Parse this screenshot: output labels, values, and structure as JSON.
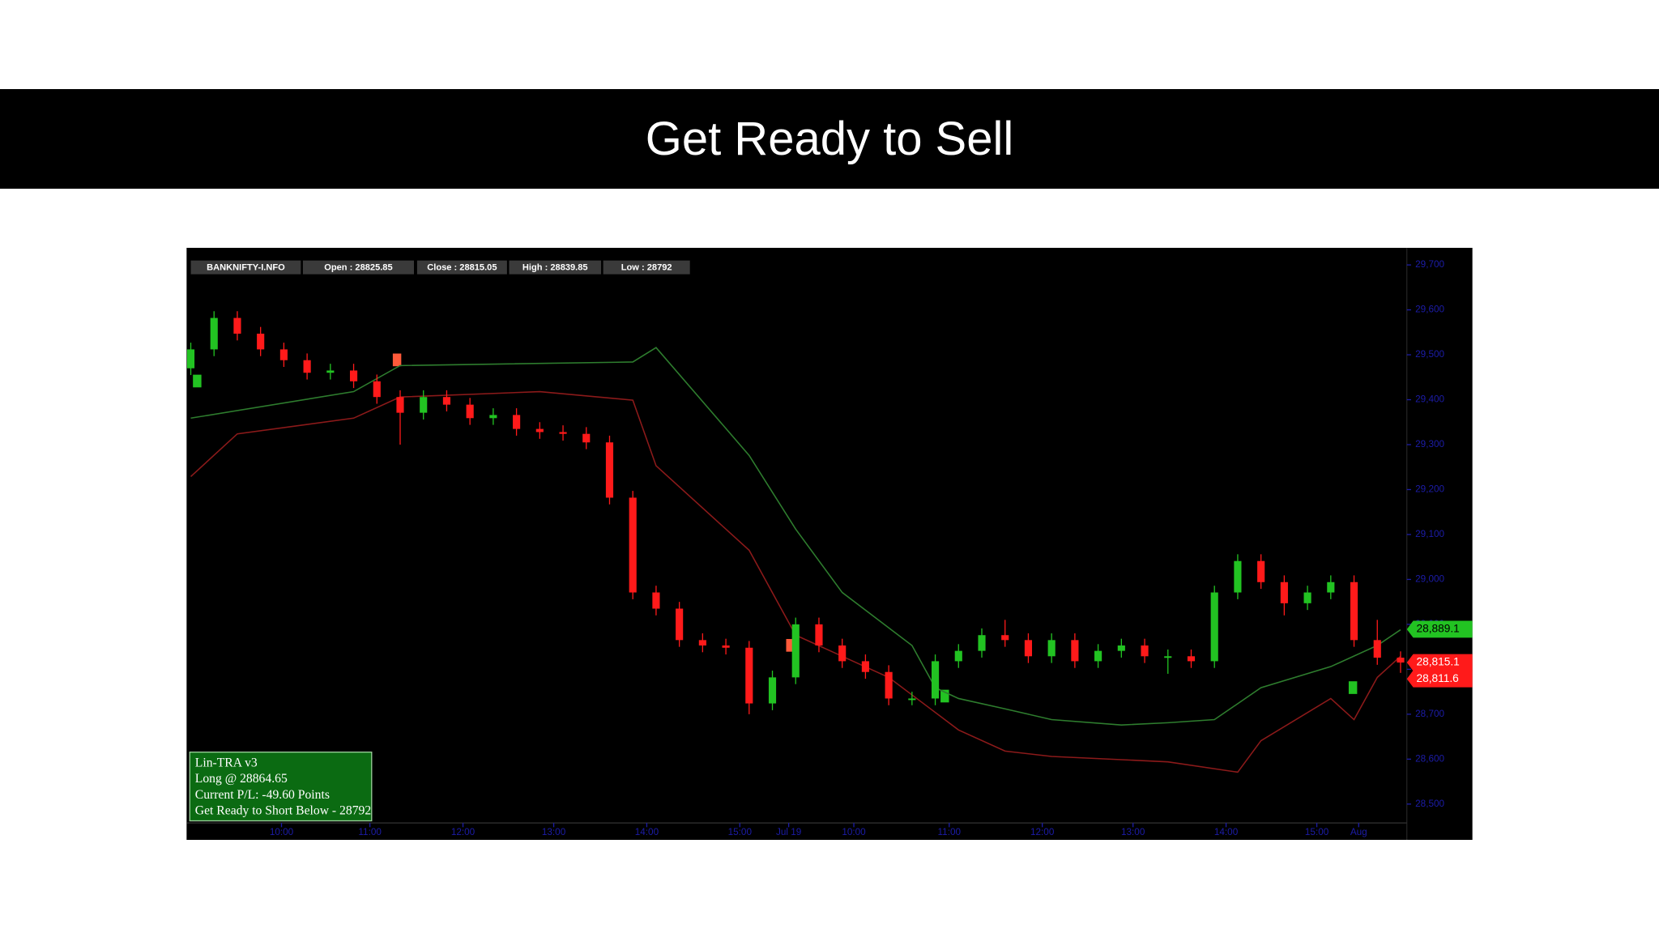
{
  "slide": {
    "title": "Get Ready to Sell"
  },
  "chart_data": {
    "type": "candlestick",
    "header": [
      "BANKNIFTY-I.NFO",
      "Open : 28825.85",
      "Close : 28815.05",
      "High : 28839.85",
      "Low : 28792"
    ],
    "open": [
      29470,
      29512,
      29582,
      29547,
      29512,
      29488,
      29460,
      29465,
      29441,
      29406,
      29371,
      29406,
      29389,
      29359,
      29366,
      29335,
      29328,
      29324,
      29305,
      29182,
      28971,
      28935,
      28865,
      28853,
      28848,
      28724,
      28782,
      28900,
      28853,
      28818,
      28794,
      28735,
      28735,
      28818,
      28841,
      28876,
      28865,
      28829,
      28865,
      28818,
      28841,
      28853,
      28829,
      28829,
      28818,
      28971,
      29041,
      28994,
      28947,
      28971,
      28994,
      28865,
      28825.85
    ],
    "high": [
      29527,
      29597,
      29597,
      29562,
      29527,
      29503,
      29480,
      29480,
      29456,
      29421,
      29421,
      29421,
      29404,
      29381,
      29381,
      29350,
      29343,
      29339,
      29320,
      29197,
      28986,
      28950,
      28880,
      28868,
      28863,
      28797,
      28915,
      28915,
      28868,
      28833,
      28809,
      28750,
      28833,
      28856,
      28891,
      28910,
      28880,
      28880,
      28880,
      28856,
      28868,
      28868,
      28844,
      28844,
      28986,
      29056,
      29056,
      29009,
      28986,
      29009,
      29009,
      28910,
      28839.85
    ],
    "low": [
      29455,
      29497,
      29532,
      29497,
      29473,
      29445,
      29445,
      29426,
      29391,
      29300,
      29356,
      29374,
      29344,
      29344,
      29320,
      29313,
      29309,
      29290,
      29167,
      28956,
      28920,
      28850,
      28838,
      28833,
      28700,
      28709,
      28767,
      28838,
      28803,
      28779,
      28720,
      28720,
      28720,
      28803,
      28826,
      28850,
      28814,
      28814,
      28803,
      28803,
      28826,
      28814,
      28790,
      28803,
      28803,
      28956,
      28979,
      28920,
      28932,
      28956,
      28850,
      28810,
      28792
    ],
    "close": [
      29512,
      29582,
      29547,
      29512,
      29488,
      29460,
      29465,
      29441,
      29406,
      29371,
      29406,
      29389,
      29359,
      29366,
      29335,
      29328,
      29324,
      29305,
      29182,
      28971,
      28935,
      28865,
      28853,
      28848,
      28724,
      28782,
      28900,
      28853,
      28818,
      28794,
      28735,
      28735,
      28818,
      28841,
      28876,
      28865,
      28829,
      28865,
      28818,
      28841,
      28853,
      28829,
      28829,
      28818,
      28971,
      29041,
      28994,
      28947,
      28971,
      28994,
      28865,
      28825.85,
      28815.05
    ],
    "up_color": "#22c322",
    "down_color": "#ff1a1a",
    "bands": [
      {
        "color": "#2e7d2e",
        "x": [
          0,
          7,
          9,
          19,
          20,
          24,
          26,
          28,
          31,
          32,
          33,
          35,
          37,
          40,
          42,
          44,
          46,
          49,
          51,
          52
        ],
        "values": [
          29359,
          29418,
          29476,
          29484,
          29516,
          29276,
          29112,
          28971,
          28853,
          28759,
          28735,
          28712,
          28688,
          28676,
          28681,
          28688,
          28759,
          28806,
          28853,
          28888
        ]
      },
      {
        "color": "#8c1a1a",
        "x": [
          0,
          2,
          7,
          9,
          15,
          19,
          20,
          24,
          26,
          30,
          33,
          35,
          37,
          42,
          45,
          46,
          49,
          50,
          51,
          52
        ],
        "values": [
          29229,
          29324,
          29359,
          29406,
          29418,
          29399,
          29253,
          29065,
          28876,
          28782,
          28665,
          28618,
          28606,
          28594,
          28571,
          28641,
          28735,
          28688,
          28782,
          28829
        ]
      }
    ],
    "xlim": [
      -0.18,
      52.27
    ],
    "xticks": [
      {
        "value": 3.9,
        "label": "10:00"
      },
      {
        "value": 7.7,
        "label": "11:00"
      },
      {
        "value": 11.7,
        "label": "12:00"
      },
      {
        "value": 15.6,
        "label": "13:00"
      },
      {
        "value": 19.6,
        "label": "14:00"
      },
      {
        "value": 23.6,
        "label": "15:00"
      },
      {
        "value": 25.7,
        "label": "Jul 19"
      },
      {
        "value": 28.5,
        "label": "10:00"
      },
      {
        "value": 32.6,
        "label": "11:00"
      },
      {
        "value": 36.6,
        "label": "12:00"
      },
      {
        "value": 40.5,
        "label": "13:00"
      },
      {
        "value": 44.5,
        "label": "14:00"
      },
      {
        "value": 48.4,
        "label": "15:00"
      },
      {
        "value": 50.2,
        "label": "Aug"
      }
    ],
    "ylim": [
      28458,
      29731
    ],
    "yticks": [
      {
        "value": 28500,
        "label": "28,500"
      },
      {
        "value": 28600,
        "label": "28,600"
      },
      {
        "value": 28700,
        "label": "28,700"
      },
      {
        "value": 28800,
        "label": "28,800"
      },
      {
        "value": 28900,
        "label": "28,900"
      },
      {
        "value": 29000,
        "label": "29,000"
      },
      {
        "value": 29100,
        "label": "29,100"
      },
      {
        "value": 29200,
        "label": "29,200"
      },
      {
        "value": 29300,
        "label": "29,300"
      },
      {
        "value": 29400,
        "label": "29,400"
      },
      {
        "value": 29500,
        "label": "29,500"
      },
      {
        "value": 29600,
        "label": "29,600"
      },
      {
        "value": 29700,
        "label": "29,700"
      }
    ],
    "price_tags": [
      {
        "value": 28889.1,
        "label": "28,889.1",
        "color": "#22c322"
      },
      {
        "value": 28815.1,
        "label": "28,815.1",
        "color": "#ff1a1a"
      },
      {
        "value": 28811.6,
        "label": "28,811.6",
        "color": "#ff1a1a"
      }
    ],
    "info_box": [
      "Lin-TRA v3",
      "Long @ 28864.65",
      "Current P/L: -49.60 Points",
      "Get Ready to Short Below - 28792"
    ]
  }
}
